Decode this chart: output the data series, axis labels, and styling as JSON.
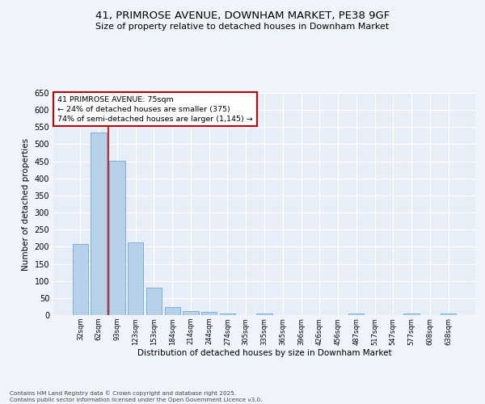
{
  "title": "41, PRIMROSE AVENUE, DOWNHAM MARKET, PE38 9GF",
  "subtitle": "Size of property relative to detached houses in Downham Market",
  "xlabel": "Distribution of detached houses by size in Downham Market",
  "ylabel": "Number of detached properties",
  "categories": [
    "32sqm",
    "62sqm",
    "93sqm",
    "123sqm",
    "153sqm",
    "184sqm",
    "214sqm",
    "244sqm",
    "274sqm",
    "305sqm",
    "335sqm",
    "365sqm",
    "396sqm",
    "426sqm",
    "456sqm",
    "487sqm",
    "517sqm",
    "547sqm",
    "577sqm",
    "608sqm",
    "638sqm"
  ],
  "values": [
    208,
    535,
    452,
    213,
    80,
    23,
    13,
    10,
    4,
    0,
    5,
    0,
    0,
    0,
    0,
    4,
    0,
    0,
    4,
    0,
    4
  ],
  "bar_color": "#b8d0ea",
  "bar_edge_color": "#6aaad4",
  "background_color": "#e8eef8",
  "grid_color": "#ffffff",
  "vline_x": 1.5,
  "vline_color": "#cc0000",
  "annotation_title": "41 PRIMROSE AVENUE: 75sqm",
  "annotation_line1": "← 24% of detached houses are smaller (375)",
  "annotation_line2": "74% of semi-detached houses are larger (1,145) →",
  "annotation_box_color": "#cc0000",
  "ylim": [
    0,
    650
  ],
  "yticks": [
    0,
    50,
    100,
    150,
    200,
    250,
    300,
    350,
    400,
    450,
    500,
    550,
    600,
    650
  ],
  "footer_line1": "Contains HM Land Registry data © Crown copyright and database right 2025.",
  "footer_line2": "Contains public sector information licensed under the Open Government Licence v3.0.",
  "fig_bg": "#f0f4fb"
}
